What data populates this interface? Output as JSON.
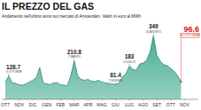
{
  "chart_data": {
    "type": "area",
    "title": "IL PREZZO DEL GAS",
    "subtitle": "Andamento nell'ultimo anno sul mercato di Amsterdam. Valori in euro al MWh",
    "categories": [
      "OTT",
      null,
      null,
      null,
      "NOV",
      null,
      null,
      null,
      "DIC",
      null,
      null,
      null,
      "GEN",
      null,
      null,
      null,
      "FEB",
      null,
      null,
      null,
      "MAR",
      null,
      null,
      null,
      "APR",
      null,
      null,
      null,
      "MAG",
      null,
      null,
      null,
      "GIU",
      null,
      null,
      null,
      "LUG",
      null,
      null,
      null,
      "AGO",
      null,
      null,
      null,
      "SET",
      null,
      null,
      null,
      "OTT",
      null,
      null,
      null,
      "NOV",
      null,
      null,
      null
    ],
    "values": [
      95,
      128.7,
      90,
      88,
      80,
      78,
      85,
      95,
      105,
      120,
      175,
      90,
      85,
      82,
      90,
      92,
      80,
      78,
      75,
      130,
      210.8,
      130,
      110,
      105,
      110,
      100,
      98,
      105,
      95,
      90,
      88,
      85,
      81.4,
      90,
      125,
      140,
      183,
      165,
      160,
      195,
      200,
      215,
      260,
      349,
      240,
      210,
      190,
      185,
      170,
      155,
      130,
      96.6,
      null,
      null,
      null,
      null
    ],
    "color": "#3fa98f",
    "ylim": [
      0,
      400
    ],
    "grid": false,
    "tick_labels": "x",
    "annotations": [
      {
        "index": 1,
        "label": "6 OTTOBRE"
      },
      {
        "index": 20,
        "label": "7 MARZO"
      },
      {
        "index": 32,
        "label": "1 GIUGNO"
      },
      {
        "index": 36,
        "label": "1 LUGLIO"
      },
      {
        "index": 43,
        "label": "26 AGOSTO"
      },
      {
        "index": 51,
        "label": "24 OTTOBRE",
        "color": "#d7161b"
      }
    ]
  }
}
